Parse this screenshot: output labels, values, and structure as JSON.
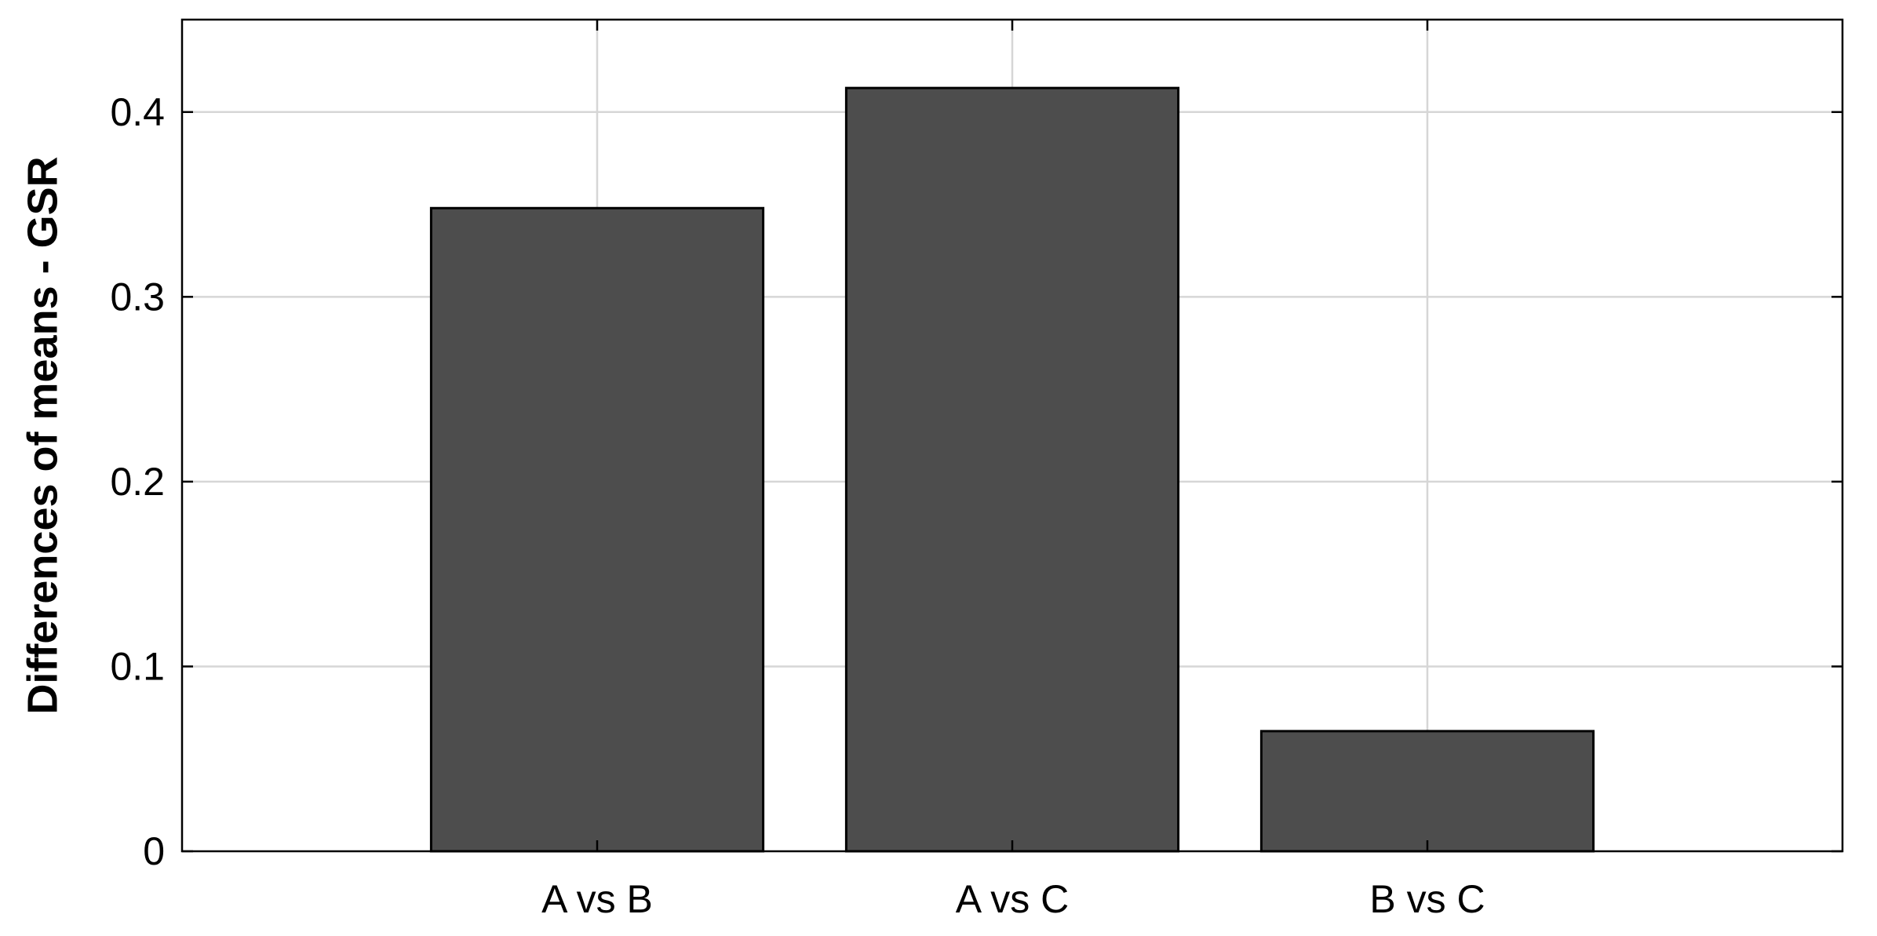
{
  "chart_data": {
    "type": "bar",
    "title": "",
    "xlabel": "",
    "ylabel": "Differences of means - GSR",
    "categories": [
      "A vs B",
      "A vs C",
      "B vs C"
    ],
    "values": [
      0.348,
      0.413,
      0.065
    ],
    "ylim": [
      0,
      0.45
    ],
    "yticks": [
      0,
      0.1,
      0.2,
      0.3,
      0.4
    ],
    "ytick_labels": [
      "0",
      "0.1",
      "0.2",
      "0.3",
      "0.4"
    ],
    "grid": true,
    "bar_color": "#4d4d4d",
    "grid_color": "#d6d6d6"
  }
}
